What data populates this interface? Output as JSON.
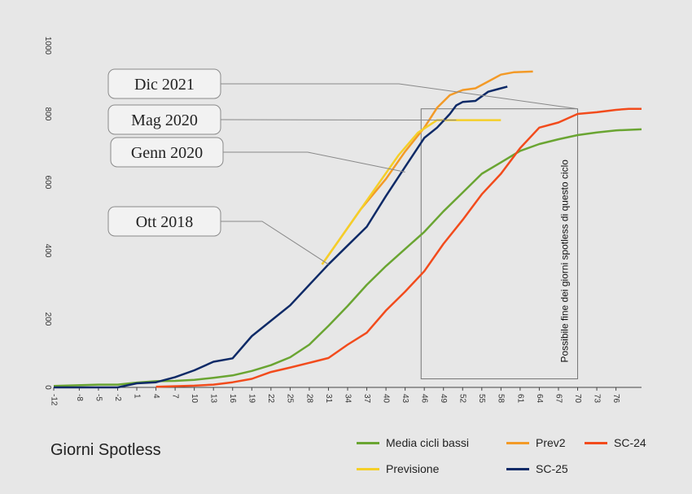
{
  "chart_data": {
    "type": "line",
    "title": "Giorni Spotless",
    "xlabel": "",
    "ylabel": "",
    "xlim": [
      -12,
      80
    ],
    "ylim": [
      0,
      1000
    ],
    "y_ticks": [
      "0",
      "200",
      "400",
      "600",
      "800",
      "1000"
    ],
    "x_ticks": [
      "-12",
      "-8",
      "-5",
      "-2",
      "1",
      "4",
      "7",
      "10",
      "13",
      "16",
      "19",
      "22",
      "25",
      "28",
      "31",
      "34",
      "37",
      "40",
      "43",
      "46",
      "49",
      "52",
      "55",
      "58",
      "61",
      "64",
      "67",
      "70",
      "73",
      "76"
    ],
    "grid": false,
    "legend_position": "bottom-right",
    "series": [
      {
        "name": "Media cicli bassi",
        "color": "#6aa532",
        "points": [
          [
            -12,
            4
          ],
          [
            -5,
            8
          ],
          [
            -2,
            8
          ],
          [
            1,
            14
          ],
          [
            4,
            18
          ],
          [
            7,
            19
          ],
          [
            10,
            22
          ],
          [
            13,
            28
          ],
          [
            16,
            35
          ],
          [
            19,
            48
          ],
          [
            22,
            65
          ],
          [
            25,
            88
          ],
          [
            28,
            125
          ],
          [
            31,
            180
          ],
          [
            34,
            238
          ],
          [
            37,
            300
          ],
          [
            40,
            355
          ],
          [
            43,
            405
          ],
          [
            46,
            455
          ],
          [
            49,
            515
          ],
          [
            52,
            570
          ],
          [
            55,
            625
          ],
          [
            58,
            658
          ],
          [
            61,
            692
          ],
          [
            64,
            712
          ],
          [
            67,
            726
          ],
          [
            70,
            738
          ],
          [
            73,
            746
          ],
          [
            76,
            752
          ],
          [
            80,
            755
          ]
        ]
      },
      {
        "name": "Prev2",
        "color": "#f39a27",
        "points": [
          [
            30,
            360
          ],
          [
            33,
            440
          ],
          [
            36,
            520
          ],
          [
            40,
            610
          ],
          [
            43,
            690
          ],
          [
            46,
            760
          ],
          [
            48,
            818
          ],
          [
            50,
            855
          ],
          [
            52,
            870
          ],
          [
            54,
            875
          ],
          [
            56,
            895
          ],
          [
            58,
            915
          ],
          [
            60,
            922
          ],
          [
            63,
            924
          ]
        ]
      },
      {
        "name": "SC-24",
        "color": "#f24b1c",
        "points": [
          [
            4,
            2
          ],
          [
            10,
            5
          ],
          [
            13,
            8
          ],
          [
            16,
            15
          ],
          [
            19,
            25
          ],
          [
            22,
            45
          ],
          [
            25,
            58
          ],
          [
            28,
            72
          ],
          [
            31,
            86
          ],
          [
            34,
            125
          ],
          [
            37,
            160
          ],
          [
            40,
            225
          ],
          [
            43,
            280
          ],
          [
            46,
            340
          ],
          [
            49,
            420
          ],
          [
            52,
            490
          ],
          [
            55,
            565
          ],
          [
            58,
            625
          ],
          [
            61,
            700
          ],
          [
            64,
            760
          ],
          [
            67,
            775
          ],
          [
            70,
            800
          ],
          [
            73,
            805
          ],
          [
            76,
            812
          ],
          [
            78,
            815
          ],
          [
            80,
            815
          ]
        ]
      },
      {
        "name": "Previsione",
        "color": "#f5cf28",
        "points": [
          [
            30,
            360
          ],
          [
            33,
            440
          ],
          [
            36,
            520
          ],
          [
            39,
            600
          ],
          [
            42,
            680
          ],
          [
            45,
            745
          ],
          [
            48,
            782
          ],
          [
            51,
            782
          ],
          [
            54,
            782
          ],
          [
            58,
            782
          ]
        ]
      },
      {
        "name": "SC-25",
        "color": "#0e2a67",
        "points": [
          [
            -12,
            0
          ],
          [
            -2,
            0
          ],
          [
            1,
            12
          ],
          [
            4,
            15
          ],
          [
            7,
            30
          ],
          [
            10,
            50
          ],
          [
            13,
            75
          ],
          [
            16,
            85
          ],
          [
            19,
            150
          ],
          [
            22,
            195
          ],
          [
            25,
            240
          ],
          [
            28,
            300
          ],
          [
            31,
            360
          ],
          [
            34,
            415
          ],
          [
            37,
            470
          ],
          [
            40,
            560
          ],
          [
            43,
            645
          ],
          [
            46,
            730
          ],
          [
            48,
            760
          ],
          [
            50,
            800
          ],
          [
            51,
            825
          ],
          [
            52,
            835
          ],
          [
            54,
            838
          ],
          [
            56,
            865
          ],
          [
            58,
            875
          ],
          [
            59,
            880
          ]
        ]
      }
    ],
    "annotations": [
      {
        "text": "Dic 2021",
        "x": 70,
        "y": 815
      },
      {
        "text": "Mag 2020",
        "x": 51,
        "y": 782
      },
      {
        "text": "Genn 2020",
        "x": 43,
        "y": 630
      },
      {
        "text": "Ott 2018",
        "x": 31,
        "y": 360
      }
    ],
    "box_label": "Possibile fine dei giorni spotless di questo ciclo"
  }
}
